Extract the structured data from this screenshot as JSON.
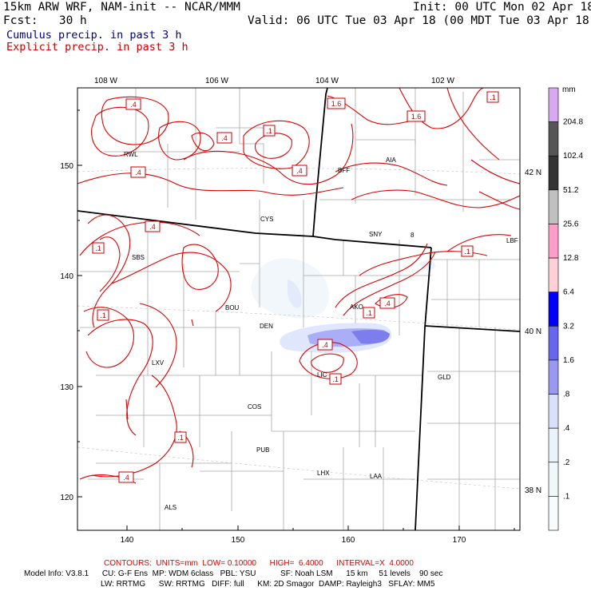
{
  "header": {
    "model": "15km ARW WRF, NAM-init -- NCAR/MMM",
    "init": "Init: 00 UTC Mon 02 Apr 18",
    "fcst": "Fcst:   30 h",
    "valid": "Valid: 06 UTC Tue 03 Apr 18 (00 MDT Tue 03 Apr 18)",
    "cumulus_label": "Cumulus precip. in past 3 h",
    "explicit_label": "Explicit precip. in past 3 h",
    "cumulus_color": "#000080",
    "explicit_color": "#cc0000"
  },
  "map": {
    "top_lon_labels": [
      "108 W",
      "106 W",
      "104 W",
      "102 W"
    ],
    "right_lat_labels": [
      "42 N",
      "40 N",
      "38 N"
    ],
    "left_y_ticks": [
      "150",
      "140",
      "130",
      "120"
    ],
    "bottom_x_ticks": [
      "140",
      "150",
      "160",
      "170"
    ],
    "stations": [
      "RWL",
      "BFF",
      "AIA",
      "CYS",
      "SNY",
      "LBF",
      "SBS",
      "BOU",
      "AKO",
      "DEN",
      "LXV",
      "LIC",
      "GLD",
      "COS",
      "PUB",
      "LHX",
      "LAA",
      "ALS"
    ],
    "contour_labels": [
      ".4",
      ".1",
      ".4",
      "1.6",
      "1.6",
      ".4",
      ".4",
      ".1",
      ".4",
      ".1",
      ".1",
      ".4",
      ".1",
      ".4",
      ".1",
      ".1",
      ".4",
      ".1"
    ]
  },
  "legend": {
    "unit": "mm",
    "values": [
      "204.8",
      "102.4",
      "51.2",
      "25.6",
      "12.8",
      "6.4",
      "3.2",
      "1.6",
      ".8",
      ".4",
      ".2",
      ".1"
    ],
    "colors": [
      "#d8a8f0",
      "#555555",
      "#333333",
      "#c0c0c0",
      "#ff9ec8",
      "#ffd0d8",
      "#0000ff",
      "#6666ee",
      "#9999f0",
      "#d8e0fc",
      "#eaf2fc",
      "#f0f8fa",
      "#f8fcfc"
    ]
  },
  "footer": {
    "contours": "CONTOURS:  UNITS=mm  LOW= 0.10000      HIGH=  6.4000      INTERVAL=X  4.0000",
    "model_info": "Model Info: V3.8.1      CU: G-F Ens  MP: WDM 6class   PBL: YSU           SF: Noah LSM      15 km     51 levels    90 sec",
    "model_info2": "LW: RRTMG      SW: RRTMG   DIFF: full      KM: 2D Smagor  DAMP: Rayleigh3   SFLAY: MM5"
  }
}
